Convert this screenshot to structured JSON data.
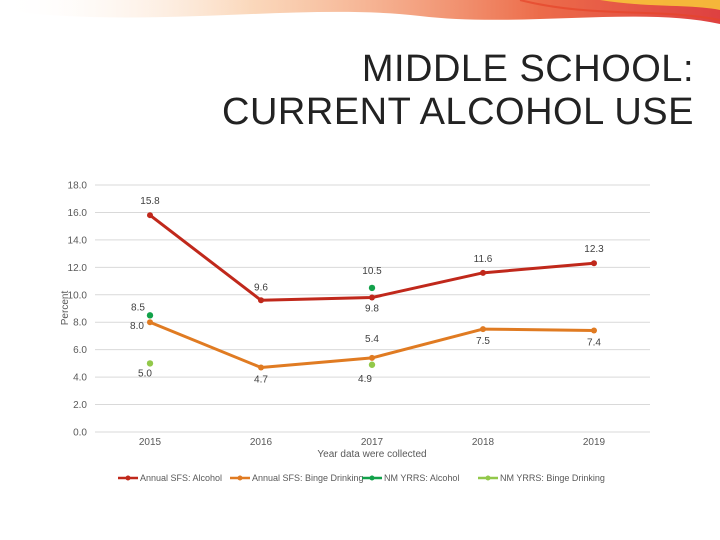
{
  "slide": {
    "title_line1": "MIDDLE SCHOOL:",
    "title_line2": "CURRENT ALCOHOL USE"
  },
  "chart_data": {
    "type": "line",
    "title": "",
    "xlabel": "Year data were collected",
    "ylabel": "Percent",
    "ylim": [
      0,
      18
    ],
    "yticks": [
      "0.0",
      "2.0",
      "4.0",
      "6.0",
      "8.0",
      "10.0",
      "12.0",
      "14.0",
      "16.0",
      "18.0"
    ],
    "categories": [
      "2015",
      "2016",
      "2017",
      "2018",
      "2019"
    ],
    "grid": true,
    "legend_position": "bottom",
    "series": [
      {
        "name": "Annual SFS: Alcohol",
        "color": "#C0281B",
        "values": [
          15.8,
          9.6,
          9.8,
          11.6,
          12.3
        ],
        "labels": [
          "15.8",
          "9.6",
          "9.8",
          "11.6",
          "12.3"
        ]
      },
      {
        "name": "Annual SFS: Binge Drinking",
        "color": "#E07B22",
        "values": [
          8.0,
          4.7,
          5.4,
          7.5,
          7.4
        ],
        "labels": [
          "8.0",
          "4.7",
          "5.4",
          "7.5",
          "7.4"
        ]
      },
      {
        "name": "NM YRRS: Alcohol",
        "color": "#12A14A",
        "values": [
          8.5,
          null,
          10.5,
          null,
          null
        ],
        "labels": [
          "8.5",
          "",
          "10.5",
          "",
          ""
        ]
      },
      {
        "name": "NM YRRS: Binge Drinking",
        "color": "#92C84A",
        "values": [
          5.0,
          null,
          4.9,
          null,
          null
        ],
        "labels": [
          "5.0",
          "",
          "4.9",
          "",
          ""
        ]
      }
    ]
  }
}
